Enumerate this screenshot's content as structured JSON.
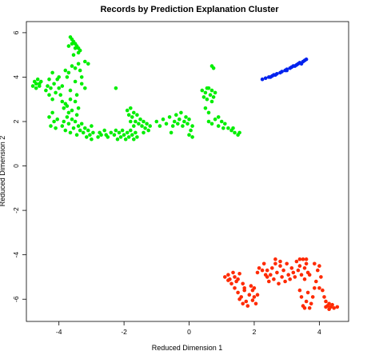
{
  "chart_data": {
    "type": "scatter",
    "title": "Records by Prediction Explanation Cluster",
    "xlabel": "Reduced Dimension 1",
    "ylabel": "Reduced Dimension 2",
    "xlim": [
      -5.0,
      4.9
    ],
    "ylim": [
      -7.0,
      6.5
    ],
    "x_ticks": [
      -4,
      -2,
      0,
      2,
      4
    ],
    "y_ticks": [
      -6,
      -4,
      -2,
      0,
      2,
      4,
      6
    ],
    "grid": false,
    "legend": "none",
    "series": [
      {
        "color": "#00ee00",
        "points": [
          [
            -4.8,
            3.6
          ],
          [
            -4.75,
            3.8
          ],
          [
            -4.7,
            3.7
          ],
          [
            -4.65,
            3.9
          ],
          [
            -4.6,
            3.7
          ],
          [
            -4.55,
            3.8
          ],
          [
            -4.7,
            3.5
          ],
          [
            -4.6,
            3.6
          ],
          [
            -4.4,
            3.4
          ],
          [
            -4.35,
            3.6
          ],
          [
            -4.3,
            3.2
          ],
          [
            -4.25,
            3.5
          ],
          [
            -4.2,
            3.0
          ],
          [
            -4.15,
            3.7
          ],
          [
            -4.1,
            3.3
          ],
          [
            -4.05,
            3.9
          ],
          [
            -4.0,
            3.5
          ],
          [
            -3.95,
            3.2
          ],
          [
            -4.3,
            3.9
          ],
          [
            -4.2,
            4.2
          ],
          [
            -4.0,
            4.0
          ],
          [
            -3.9,
            3.6
          ],
          [
            -3.65,
            5.8
          ],
          [
            -3.6,
            5.7
          ],
          [
            -3.55,
            5.6
          ],
          [
            -3.5,
            5.5
          ],
          [
            -3.45,
            5.4
          ],
          [
            -3.4,
            5.3
          ],
          [
            -3.35,
            5.2
          ],
          [
            -3.6,
            5.5
          ],
          [
            -3.5,
            5.3
          ],
          [
            -3.4,
            5.1
          ],
          [
            -3.7,
            5.4
          ],
          [
            -3.55,
            5.0
          ],
          [
            -3.2,
            4.7
          ],
          [
            -3.1,
            4.6
          ],
          [
            -3.8,
            4.3
          ],
          [
            -3.75,
            4.0
          ],
          [
            -3.7,
            4.2
          ],
          [
            -3.6,
            4.5
          ],
          [
            -3.5,
            4.4
          ],
          [
            -3.4,
            4.6
          ],
          [
            -3.35,
            4.3
          ],
          [
            -3.3,
            4.0
          ],
          [
            -3.3,
            3.7
          ],
          [
            -3.2,
            3.5
          ],
          [
            -3.5,
            3.8
          ],
          [
            -3.65,
            3.4
          ],
          [
            -3.45,
            3.2
          ],
          [
            -3.9,
            2.9
          ],
          [
            -3.85,
            2.6
          ],
          [
            -3.8,
            2.8
          ],
          [
            -3.75,
            2.7
          ],
          [
            -3.7,
            2.4
          ],
          [
            -3.65,
            3.0
          ],
          [
            -3.6,
            2.5
          ],
          [
            -3.5,
            2.9
          ],
          [
            -3.45,
            2.3
          ],
          [
            -3.4,
            2.6
          ],
          [
            -4.3,
            2.2
          ],
          [
            -4.25,
            1.8
          ],
          [
            -4.2,
            2.4
          ],
          [
            -4.15,
            2.0
          ],
          [
            -4.1,
            1.7
          ],
          [
            -4.05,
            2.1
          ],
          [
            -3.9,
            1.8
          ],
          [
            -3.85,
            2.0
          ],
          [
            -3.8,
            1.6
          ],
          [
            -3.75,
            2.2
          ],
          [
            -3.7,
            1.9
          ],
          [
            -3.65,
            1.5
          ],
          [
            -3.6,
            2.1
          ],
          [
            -3.55,
            1.7
          ],
          [
            -3.5,
            2.0
          ],
          [
            -3.45,
            1.4
          ],
          [
            -3.4,
            1.8
          ],
          [
            -3.35,
            1.6
          ],
          [
            -3.3,
            1.9
          ],
          [
            -3.25,
            1.5
          ],
          [
            -3.2,
            1.7
          ],
          [
            -3.15,
            1.3
          ],
          [
            -3.1,
            1.6
          ],
          [
            -3.05,
            1.4
          ],
          [
            -3.0,
            1.8
          ],
          [
            -2.95,
            1.5
          ],
          [
            -3.0,
            1.2
          ],
          [
            -2.8,
            1.3
          ],
          [
            -2.75,
            1.5
          ],
          [
            -2.7,
            1.4
          ],
          [
            -2.6,
            1.6
          ],
          [
            -2.55,
            1.4
          ],
          [
            -2.5,
            1.3
          ],
          [
            -2.4,
            1.5
          ],
          [
            -2.3,
            1.4
          ],
          [
            -2.25,
            1.6
          ],
          [
            -2.2,
            1.2
          ],
          [
            -2.15,
            1.5
          ],
          [
            -2.1,
            1.3
          ],
          [
            -2.05,
            1.6
          ],
          [
            -2.0,
            1.4
          ],
          [
            -1.95,
            1.2
          ],
          [
            -1.9,
            1.5
          ],
          [
            -1.85,
            1.3
          ],
          [
            -1.8,
            1.6
          ],
          [
            -1.75,
            1.4
          ],
          [
            -1.7,
            1.2
          ],
          [
            -1.65,
            1.5
          ],
          [
            -1.6,
            1.3
          ],
          [
            -1.9,
            2.5
          ],
          [
            -1.85,
            2.3
          ],
          [
            -1.8,
            2.6
          ],
          [
            -1.75,
            2.2
          ],
          [
            -1.7,
            2.4
          ],
          [
            -1.65,
            2.0
          ],
          [
            -1.6,
            2.3
          ],
          [
            -1.55,
            1.9
          ],
          [
            -1.8,
            2.0
          ],
          [
            -1.7,
            1.8
          ],
          [
            -1.5,
            2.1
          ],
          [
            -1.45,
            1.8
          ],
          [
            -1.4,
            2.0
          ],
          [
            -1.35,
            1.7
          ],
          [
            -1.3,
            1.9
          ],
          [
            -1.25,
            1.6
          ],
          [
            -1.2,
            1.8
          ],
          [
            -1.4,
            1.5
          ],
          [
            -2.25,
            3.5
          ],
          [
            -1.0,
            2.0
          ],
          [
            -0.9,
            1.8
          ],
          [
            -0.8,
            2.1
          ],
          [
            -0.7,
            1.9
          ],
          [
            -0.6,
            2.2
          ],
          [
            -0.5,
            1.8
          ],
          [
            -0.45,
            2.0
          ],
          [
            -0.4,
            2.3
          ],
          [
            -0.35,
            1.9
          ],
          [
            -0.3,
            2.1
          ],
          [
            -0.25,
            2.4
          ],
          [
            -0.2,
            1.8
          ],
          [
            -0.15,
            2.0
          ],
          [
            -0.1,
            2.2
          ],
          [
            -0.05,
            1.9
          ],
          [
            0.0,
            2.1
          ],
          [
            0.05,
            1.6
          ],
          [
            0.1,
            1.8
          ],
          [
            0.0,
            1.4
          ],
          [
            0.1,
            1.3
          ],
          [
            -0.55,
            1.5
          ],
          [
            0.4,
            3.4
          ],
          [
            0.45,
            3.1
          ],
          [
            0.5,
            3.3
          ],
          [
            0.55,
            3.0
          ],
          [
            0.6,
            3.5
          ],
          [
            0.65,
            3.2
          ],
          [
            0.7,
            3.4
          ],
          [
            0.75,
            3.1
          ],
          [
            0.8,
            3.3
          ],
          [
            0.55,
            3.5
          ],
          [
            0.7,
            2.9
          ],
          [
            0.5,
            2.6
          ],
          [
            0.6,
            2.4
          ],
          [
            0.7,
            4.5
          ],
          [
            0.75,
            4.4
          ],
          [
            0.6,
            2.0
          ],
          [
            0.7,
            1.9
          ],
          [
            0.8,
            2.1
          ],
          [
            0.9,
            1.8
          ],
          [
            1.0,
            2.0
          ],
          [
            1.05,
            1.7
          ],
          [
            1.1,
            1.9
          ],
          [
            0.9,
            2.2
          ],
          [
            1.2,
            1.7
          ],
          [
            1.3,
            1.6
          ],
          [
            1.4,
            1.5
          ],
          [
            1.5,
            1.4
          ],
          [
            1.55,
            1.5
          ],
          [
            1.35,
            1.7
          ]
        ]
      },
      {
        "color": "#0022ee",
        "points": [
          [
            2.25,
            3.9
          ],
          [
            2.35,
            3.95
          ],
          [
            2.45,
            4.0
          ],
          [
            2.55,
            4.05
          ],
          [
            2.6,
            4.1
          ],
          [
            2.7,
            4.15
          ],
          [
            2.8,
            4.2
          ],
          [
            2.85,
            4.25
          ],
          [
            2.95,
            4.3
          ],
          [
            3.0,
            4.35
          ],
          [
            3.1,
            4.4
          ],
          [
            3.15,
            4.45
          ],
          [
            3.2,
            4.5
          ],
          [
            3.3,
            4.55
          ],
          [
            3.35,
            4.6
          ],
          [
            3.4,
            4.65
          ],
          [
            3.45,
            4.6
          ],
          [
            3.5,
            4.7
          ],
          [
            3.55,
            4.75
          ],
          [
            3.6,
            4.8
          ],
          [
            3.0,
            4.3
          ],
          [
            3.25,
            4.5
          ],
          [
            2.5,
            4.0
          ],
          [
            2.65,
            4.1
          ]
        ]
      },
      {
        "color": "#ff2a00",
        "points": [
          [
            1.1,
            -5.0
          ],
          [
            1.2,
            -4.9
          ],
          [
            1.25,
            -5.1
          ],
          [
            1.3,
            -5.3
          ],
          [
            1.35,
            -4.8
          ],
          [
            1.4,
            -5.0
          ],
          [
            1.45,
            -5.2
          ],
          [
            1.5,
            -5.1
          ],
          [
            1.55,
            -4.85
          ],
          [
            1.2,
            -5.15
          ],
          [
            1.4,
            -5.5
          ],
          [
            1.5,
            -5.7
          ],
          [
            1.55,
            -6.0
          ],
          [
            1.6,
            -5.9
          ],
          [
            1.65,
            -6.2
          ],
          [
            1.7,
            -5.6
          ],
          [
            1.75,
            -6.1
          ],
          [
            1.8,
            -6.3
          ],
          [
            1.65,
            -5.3
          ],
          [
            1.7,
            -5.5
          ],
          [
            1.85,
            -5.8
          ],
          [
            1.9,
            -5.4
          ],
          [
            1.95,
            -5.6
          ],
          [
            2.0,
            -5.9
          ],
          [
            2.05,
            -6.2
          ],
          [
            2.1,
            -5.8
          ],
          [
            2.0,
            -5.5
          ],
          [
            1.95,
            -6.05
          ],
          [
            2.1,
            -4.8
          ],
          [
            2.15,
            -4.6
          ],
          [
            2.25,
            -4.7
          ],
          [
            2.35,
            -4.9
          ],
          [
            2.3,
            -4.4
          ],
          [
            2.4,
            -5.0
          ],
          [
            2.4,
            -4.7
          ],
          [
            2.45,
            -5.2
          ],
          [
            2.5,
            -4.9
          ],
          [
            2.55,
            -4.6
          ],
          [
            2.6,
            -5.1
          ],
          [
            2.65,
            -4.4
          ],
          [
            2.7,
            -4.8
          ],
          [
            2.75,
            -5.3
          ],
          [
            2.8,
            -4.5
          ],
          [
            2.85,
            -5.0
          ],
          [
            2.9,
            -4.7
          ],
          [
            2.95,
            -5.2
          ],
          [
            3.0,
            -4.4
          ],
          [
            3.05,
            -4.9
          ],
          [
            3.1,
            -5.1
          ],
          [
            3.15,
            -4.6
          ],
          [
            3.2,
            -4.8
          ],
          [
            3.25,
            -5.0
          ],
          [
            3.3,
            -4.3
          ],
          [
            3.35,
            -4.7
          ],
          [
            3.4,
            -4.5
          ],
          [
            3.45,
            -4.9
          ],
          [
            3.5,
            -4.2
          ],
          [
            3.55,
            -4.6
          ],
          [
            3.6,
            -4.4
          ],
          [
            3.65,
            -4.8
          ],
          [
            2.65,
            -4.2
          ],
          [
            2.8,
            -4.3
          ],
          [
            3.4,
            -4.2
          ],
          [
            3.6,
            -4.2
          ],
          [
            3.55,
            -5.1
          ],
          [
            3.4,
            -5.6
          ],
          [
            3.45,
            -5.9
          ],
          [
            3.5,
            -6.3
          ],
          [
            3.55,
            -6.4
          ],
          [
            3.6,
            -6.1
          ],
          [
            3.65,
            -5.7
          ],
          [
            3.7,
            -6.4
          ],
          [
            3.75,
            -6.2
          ],
          [
            3.8,
            -5.9
          ],
          [
            3.85,
            -5.5
          ],
          [
            3.9,
            -5.2
          ],
          [
            3.95,
            -4.7
          ],
          [
            4.0,
            -4.5
          ],
          [
            4.05,
            -5.0
          ],
          [
            3.7,
            -4.9
          ],
          [
            3.85,
            -4.4
          ],
          [
            4.0,
            -5.5
          ],
          [
            4.1,
            -5.6
          ],
          [
            4.15,
            -5.9
          ],
          [
            4.2,
            -6.1
          ],
          [
            4.25,
            -6.3
          ],
          [
            4.3,
            -6.2
          ],
          [
            4.35,
            -6.35
          ],
          [
            4.4,
            -6.25
          ],
          [
            4.45,
            -6.4
          ],
          [
            4.55,
            -6.35
          ],
          [
            4.2,
            -6.35
          ],
          [
            4.3,
            -6.45
          ]
        ]
      }
    ]
  }
}
